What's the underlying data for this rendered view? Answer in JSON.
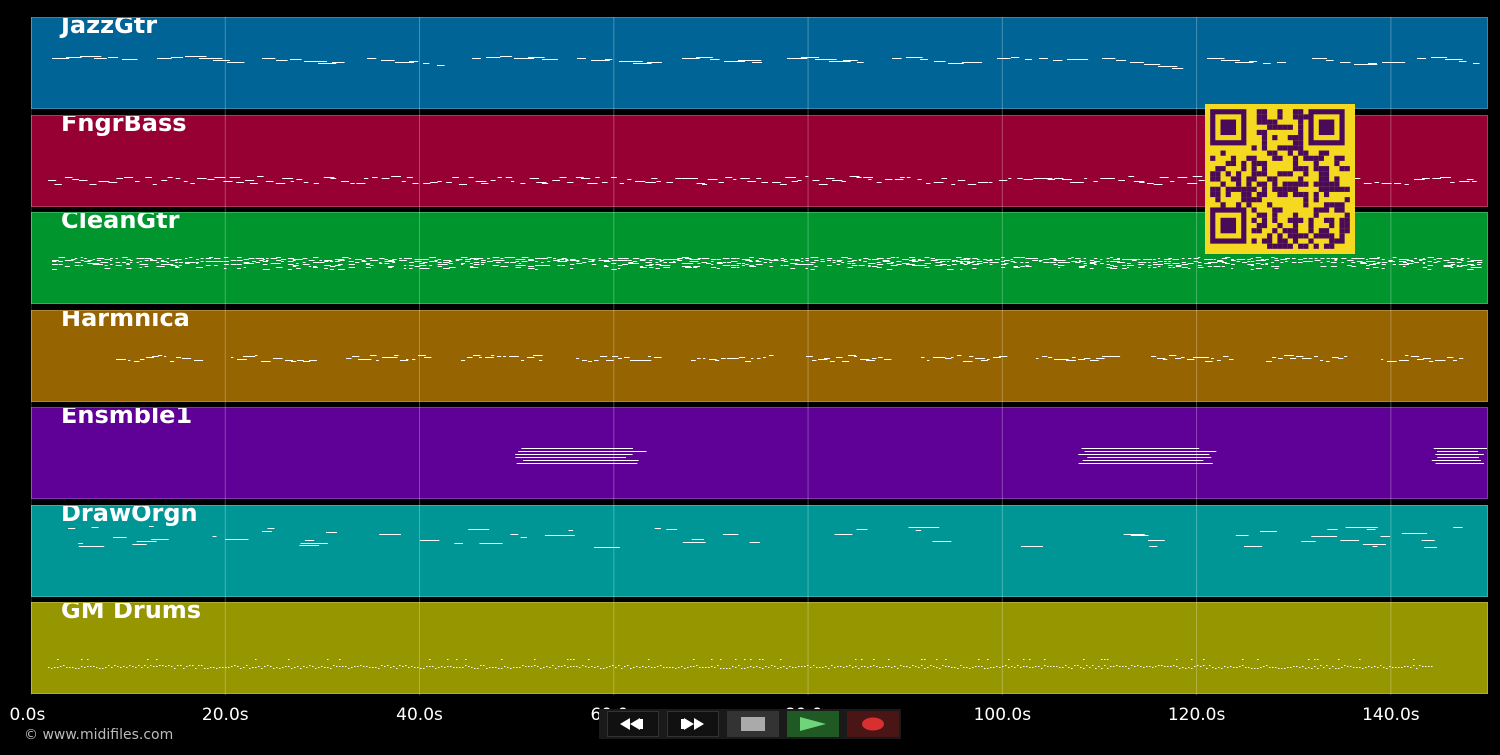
{
  "tracks": [
    {
      "name": "JazzGtr",
      "color": "#006496"
    },
    {
      "name": "FngrBass",
      "color": "#960032"
    },
    {
      "name": "CleanGtr",
      "color": "#00962d"
    },
    {
      "name": "Harmnica",
      "color": "#966400"
    },
    {
      "name": "Ensmble1",
      "color": "#5f0096"
    },
    {
      "name": "DrawOrgn",
      "color": "#009696"
    },
    {
      "name": "GM Drums",
      "color": "#969600"
    }
  ],
  "timeline": {
    "max_seconds": 150,
    "tick_labels": [
      "0.0s",
      "20.0s",
      "40.0s",
      "60.0s",
      "80.0s",
      "100.0s",
      "120.0s",
      "140.0s"
    ],
    "tick_values": [
      0,
      20,
      40,
      60,
      80,
      100,
      120,
      140
    ]
  },
  "copyright": "© www.midifiles.com",
  "transport": {
    "buttons": [
      {
        "name": "rewind-button",
        "icon": "rewind-icon"
      },
      {
        "name": "fast-forward-button",
        "icon": "fast-forward-icon"
      },
      {
        "name": "stop-button",
        "icon": "stop-icon"
      },
      {
        "name": "play-button",
        "icon": "play-icon"
      },
      {
        "name": "record-button",
        "icon": "record-icon"
      }
    ]
  },
  "qr": {
    "fg": "#4a0a5a",
    "bg": "#f5d920"
  }
}
